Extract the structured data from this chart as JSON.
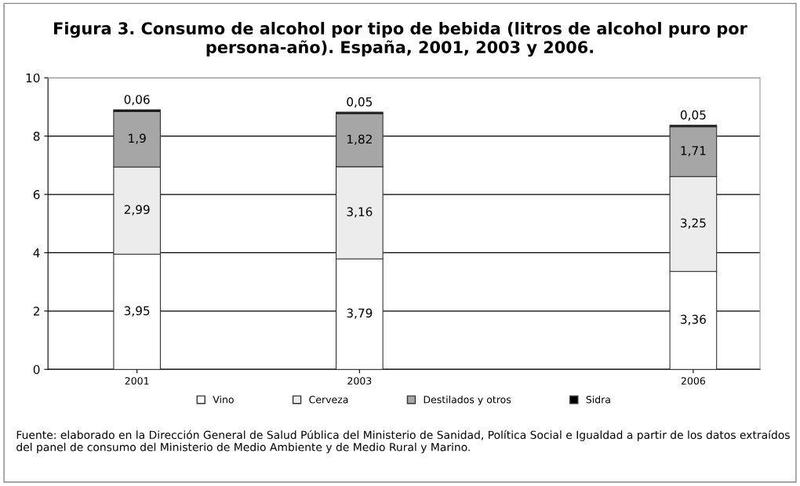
{
  "chart_data": {
    "type": "bar",
    "stacked": true,
    "title": "Figura 3. Consumo de alcohol por tipo de bebida (litros de alcohol puro por persona-año). España, 2001, 2003 y 2006.",
    "x": [
      2001,
      2003,
      2006
    ],
    "xlim": [
      2000.2,
      2006.6
    ],
    "xticks": [
      2001,
      2003,
      2006
    ],
    "ylim": [
      0,
      10
    ],
    "yticks": [
      0,
      2,
      4,
      6,
      8,
      10
    ],
    "grid": "y",
    "legend": "bottom",
    "series": [
      {
        "name": "Vino",
        "color": "#ffffff",
        "values": [
          3.95,
          3.79,
          3.36
        ],
        "value_labels": [
          "3,95",
          "3,79",
          "3,36"
        ]
      },
      {
        "name": "Cerveza",
        "color": "#ececec",
        "values": [
          2.99,
          3.16,
          3.25
        ],
        "value_labels": [
          "2,99",
          "3,16",
          "3,25"
        ]
      },
      {
        "name": "Destilados y otros",
        "color": "#a6a6a6",
        "values": [
          1.9,
          1.82,
          1.71
        ],
        "value_labels": [
          "1,9",
          "1,82",
          "1,71"
        ]
      },
      {
        "name": "Sidra",
        "color": "#000000",
        "values": [
          0.06,
          0.05,
          0.05
        ],
        "value_labels": [
          "0,06",
          "0,05",
          "0,05"
        ]
      }
    ],
    "annotations": [
      "Fuente: elaborado en la Dirección General de Salud Pública del Ministerio de Sanidad, Política Social e Igualdad a partir de los datos extraídos del panel de consumo del Ministerio de Medio Ambiente y de Medio Rural y Marino."
    ]
  }
}
